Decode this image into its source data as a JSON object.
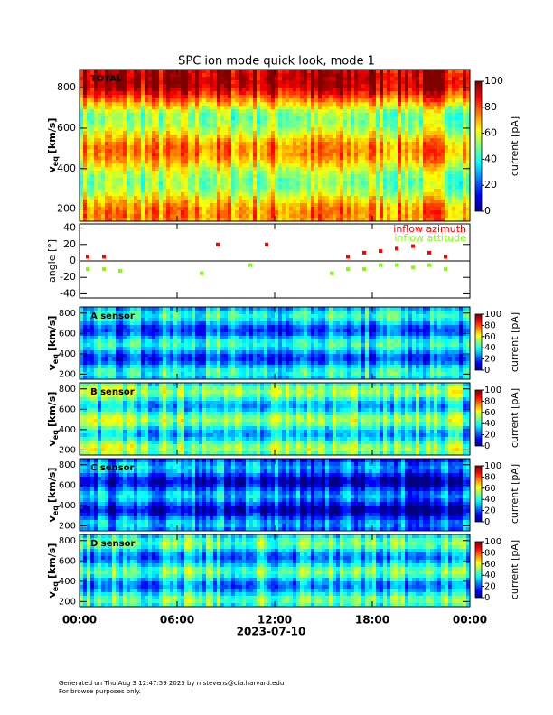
{
  "title": "SPC ion mode quick look, mode 1",
  "x_axis": {
    "label": "2023-07-10",
    "xlim": [
      0,
      24
    ],
    "xticks": [
      {
        "value": 0,
        "label": "00:00"
      },
      {
        "value": 6,
        "label": "06:00"
      },
      {
        "value": 12,
        "label": "12:00"
      },
      {
        "value": 18,
        "label": "18:00"
      },
      {
        "value": 24,
        "label": "00:00"
      }
    ]
  },
  "footer": [
    "Generated on Thu Aug  3 12:47:59 2023 by mstevens@cfa.harvard.edu",
    "For browse purposes only."
  ],
  "chart_data": [
    {
      "type": "spectrogram",
      "label": "TOTAL",
      "ylabel": {
        "main": "v",
        "sub": "eq",
        "unit": "[km/s]"
      },
      "ylim": [
        140,
        890
      ],
      "yticks": [
        200,
        400,
        600,
        800
      ],
      "colorbar": {
        "label": "current [pA]",
        "lim": [
          0,
          100
        ],
        "ticks": [
          0,
          20,
          40,
          60,
          80,
          100
        ]
      }
    },
    {
      "type": "scatter",
      "ylabel": "angle [°]",
      "ylim": [
        -45,
        45
      ],
      "yticks": [
        -40,
        -20,
        0,
        20,
        40
      ],
      "x": [
        0.5,
        1.5,
        2.5,
        3.5,
        4.5,
        5.5,
        6.5,
        7.5,
        8.5,
        9.5,
        10.5,
        11.5,
        12.5,
        13.5,
        14.5,
        15.5,
        16.5,
        17.5,
        18.5,
        19.5,
        20.5,
        21.5,
        22.5,
        23.5
      ],
      "series": [
        {
          "name": "inflow azimuth",
          "color": "#ff0000",
          "values": [
            5,
            5,
            null,
            null,
            null,
            null,
            null,
            null,
            20,
            null,
            null,
            20,
            null,
            null,
            null,
            null,
            5,
            10,
            12,
            15,
            18,
            10,
            5,
            null
          ]
        },
        {
          "name": "inflow attitude",
          "color": "#7fff00",
          "values": [
            -10,
            -10,
            -12,
            null,
            null,
            null,
            null,
            -15,
            null,
            null,
            -5,
            null,
            null,
            null,
            null,
            -15,
            -10,
            -10,
            -5,
            -5,
            -8,
            -5,
            -10,
            null
          ]
        }
      ]
    },
    {
      "type": "spectrogram",
      "label": "A sensor",
      "ylabel": {
        "main": "v",
        "sub": "eq",
        "unit": "[km/s]"
      },
      "ylim": [
        150,
        860
      ],
      "yticks": [
        200,
        400,
        600,
        800
      ],
      "colorbar": {
        "label": "current [pA]",
        "lim": [
          0,
          100
        ],
        "ticks": [
          0,
          20,
          40,
          60,
          80,
          100
        ]
      }
    },
    {
      "type": "spectrogram",
      "label": "B sensor",
      "ylabel": {
        "main": "v",
        "sub": "eq",
        "unit": "[km/s]"
      },
      "ylim": [
        150,
        860
      ],
      "yticks": [
        200,
        400,
        600,
        800
      ],
      "colorbar": {
        "label": "current [pA]",
        "lim": [
          0,
          100
        ],
        "ticks": [
          0,
          20,
          40,
          60,
          80,
          100
        ]
      }
    },
    {
      "type": "spectrogram",
      "label": "C sensor",
      "ylabel": {
        "main": "v",
        "sub": "eq",
        "unit": "[km/s]"
      },
      "ylim": [
        150,
        860
      ],
      "yticks": [
        200,
        400,
        600,
        800
      ],
      "colorbar": {
        "label": "current [pA]",
        "lim": [
          0,
          100
        ],
        "ticks": [
          0,
          20,
          40,
          60,
          80,
          100
        ]
      }
    },
    {
      "type": "spectrogram",
      "label": "D sensor",
      "ylabel": {
        "main": "v",
        "sub": "eq",
        "unit": "[km/s]"
      },
      "ylim": [
        150,
        860
      ],
      "yticks": [
        200,
        400,
        600,
        800
      ],
      "colorbar": {
        "label": "current [pA]",
        "lim": [
          0,
          100
        ],
        "ticks": [
          0,
          20,
          40,
          60,
          80,
          100
        ]
      }
    }
  ]
}
